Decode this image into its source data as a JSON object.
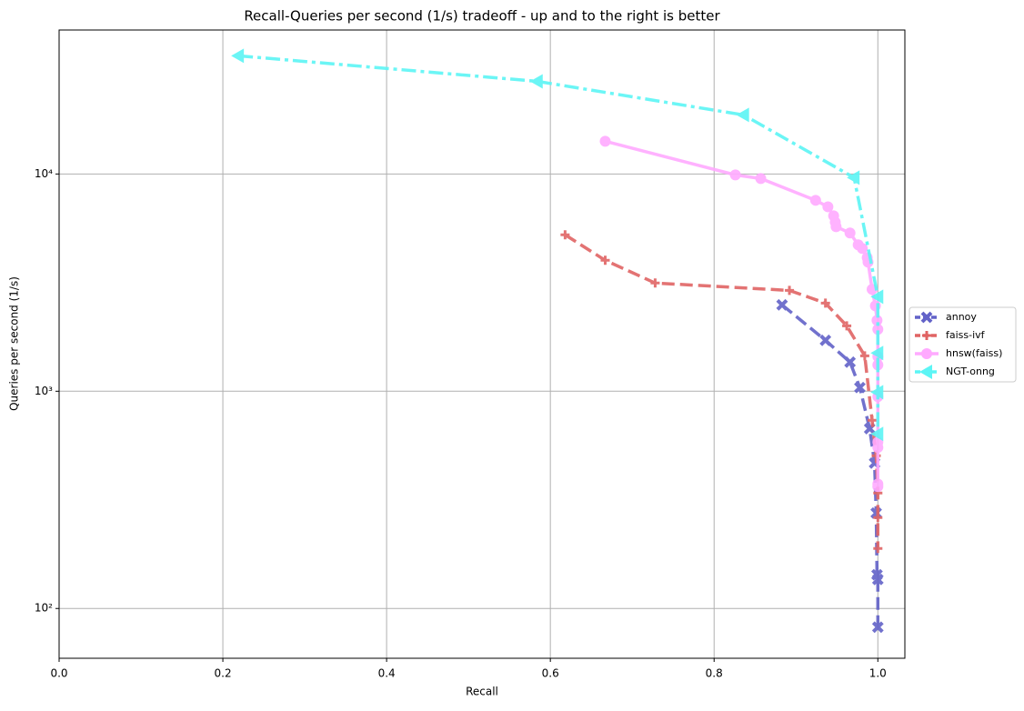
{
  "chart_data": {
    "type": "line",
    "title": "Recall-Queries per second (1/s) tradeoff - up and to the right is better",
    "x_label": "Recall",
    "y_label": "Queries per second (1/s)",
    "xlim": [
      0,
      1.033
    ],
    "ylim": [
      59,
      46000
    ],
    "log_y": true,
    "grid": true,
    "legend": "right",
    "xticks": [
      {
        "value": 0,
        "label": "0.0"
      },
      0.2,
      0.4,
      0.6,
      0.8,
      {
        "value": 1,
        "label": "1.0"
      }
    ],
    "yticks": [
      {
        "value": 100,
        "label": "10²"
      },
      {
        "value": 1000,
        "label": "10³"
      },
      {
        "value": 10000,
        "label": "10⁴"
      }
    ],
    "series": [
      {
        "name": "annoy",
        "color": "#6262c8",
        "marker": "x",
        "linestyle": "dashed",
        "x": [
          0.883,
          0.936,
          0.966,
          0.978,
          0.99,
          0.996,
          0.998,
          0.999,
          1.0,
          1.0
        ],
        "values": [
          2497,
          1715,
          1361,
          1040,
          673,
          467,
          275,
          143,
          136,
          82
        ]
      },
      {
        "name": "faiss-ivf",
        "color": "#e06464",
        "marker": "plus",
        "linestyle": "dashed",
        "x": [
          0.618,
          0.667,
          0.728,
          0.892,
          0.936,
          0.962,
          0.984,
          0.993,
          0.998,
          1.0,
          1.0,
          1.0
        ],
        "values": [
          5250,
          4006,
          3148,
          2911,
          2545,
          2000,
          1456,
          735,
          505,
          340,
          262,
          189
        ]
      },
      {
        "name": "hnsw(faiss)",
        "color": "#ffaaff",
        "marker": "circle",
        "linestyle": "solid",
        "x": [
          0.667,
          0.826,
          0.857,
          0.924,
          0.939,
          0.946,
          0.948,
          0.949,
          0.966,
          0.976,
          0.981,
          0.987,
          0.988,
          0.993,
          0.997,
          0.999,
          1.0,
          1.0,
          1.0,
          1.0,
          1.0,
          1.0,
          1.0,
          1.0
        ],
        "values": [
          14150,
          9904,
          9530,
          7565,
          7063,
          6420,
          6000,
          5720,
          5350,
          4720,
          4540,
          4120,
          3930,
          2943,
          2473,
          2120,
          1926,
          1443,
          1321,
          944,
          583,
          551,
          374,
          364
        ]
      },
      {
        "name": "NGT-onng",
        "color": "#5cf5f5",
        "marker": "triangle-left",
        "linestyle": "dashdot",
        "x": [
          0.219,
          0.584,
          0.836,
          0.971,
          1.0,
          1.0,
          1.0,
          1.0
        ],
        "values": [
          35000,
          26700,
          18700,
          9620,
          2723,
          1500,
          990,
          636
        ]
      }
    ]
  }
}
